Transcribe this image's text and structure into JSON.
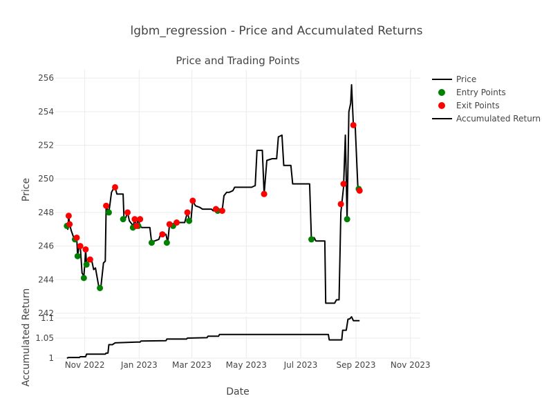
{
  "title": "lgbm_regression - Price and Accumulated Returns",
  "chart_data": {
    "type": "line",
    "xlabel": "Date",
    "x_range": [
      "2022-09-29",
      "2023-11-12"
    ],
    "x_ticks": [
      {
        "date": "2022-11-01",
        "label": "Nov 2022"
      },
      {
        "date": "2023-01-01",
        "label": "Jan 2023"
      },
      {
        "date": "2023-03-01",
        "label": "Mar 2023"
      },
      {
        "date": "2023-05-01",
        "label": "May 2023"
      },
      {
        "date": "2023-07-01",
        "label": "Jul 2023"
      },
      {
        "date": "2023-09-01",
        "label": "Sep 2023"
      },
      {
        "date": "2023-11-01",
        "label": "Nov 2023"
      }
    ],
    "legend": {
      "placement": "right",
      "items": [
        {
          "label": "Price",
          "kind": "line",
          "color": "#000000"
        },
        {
          "label": "Entry Points",
          "kind": "marker",
          "color": "#008000"
        },
        {
          "label": "Exit Points",
          "kind": "marker",
          "color": "#ff0000"
        },
        {
          "label": "Accumulated Return",
          "kind": "line",
          "color": "#000000"
        }
      ]
    },
    "price_panel": {
      "title": "Price and Trading Points",
      "ylabel": "Price",
      "ylim": [
        242,
        256.5
      ],
      "y_ticks": [
        242,
        244,
        246,
        248,
        250,
        252,
        254,
        256
      ],
      "price": {
        "name": "Price",
        "color": "#000000",
        "points": [
          [
            "2022-10-12",
            247.2
          ],
          [
            "2022-10-13",
            247.0
          ],
          [
            "2022-10-14",
            247.8
          ],
          [
            "2022-10-15",
            247.3
          ],
          [
            "2022-10-17",
            246.9
          ],
          [
            "2022-10-19",
            246.6
          ],
          [
            "2022-10-21",
            246.4
          ],
          [
            "2022-10-23",
            246.5
          ],
          [
            "2022-10-24",
            245.4
          ],
          [
            "2022-10-25",
            245.8
          ],
          [
            "2022-10-27",
            246.0
          ],
          [
            "2022-10-29",
            244.4
          ],
          [
            "2022-10-31",
            244.2
          ],
          [
            "2022-11-01",
            244.9
          ],
          [
            "2022-11-02",
            245.8
          ],
          [
            "2022-11-03",
            244.9
          ],
          [
            "2022-11-05",
            245.1
          ],
          [
            "2022-11-07",
            245.2
          ],
          [
            "2022-11-09",
            245.1
          ],
          [
            "2022-11-11",
            244.6
          ],
          [
            "2022-11-13",
            244.7
          ],
          [
            "2022-11-15",
            244.1
          ],
          [
            "2022-11-17",
            243.5
          ],
          [
            "2022-11-19",
            243.5
          ],
          [
            "2022-11-22",
            245.0
          ],
          [
            "2022-11-24",
            245.1
          ],
          [
            "2022-11-25",
            248.4
          ],
          [
            "2022-11-28",
            248.0
          ],
          [
            "2022-12-01",
            249.2
          ],
          [
            "2022-12-03",
            249.4
          ],
          [
            "2022-12-05",
            249.5
          ],
          [
            "2022-12-07",
            249.1
          ],
          [
            "2022-12-14",
            249.1
          ],
          [
            "2022-12-15",
            247.6
          ],
          [
            "2022-12-17",
            247.7
          ],
          [
            "2022-12-19",
            248.0
          ],
          [
            "2022-12-21",
            247.5
          ],
          [
            "2022-12-24",
            247.3
          ],
          [
            "2022-12-25",
            247.1
          ],
          [
            "2022-12-27",
            247.6
          ],
          [
            "2022-12-29",
            247.2
          ],
          [
            "2022-12-31",
            247.6
          ],
          [
            "2023-01-02",
            247.2
          ],
          [
            "2023-01-04",
            247.1
          ],
          [
            "2023-01-13",
            247.1
          ],
          [
            "2023-01-15",
            246.2
          ],
          [
            "2023-01-18",
            246.3
          ],
          [
            "2023-01-23",
            246.4
          ],
          [
            "2023-01-25",
            246.7
          ],
          [
            "2023-01-27",
            246.7
          ],
          [
            "2023-01-31",
            246.7
          ],
          [
            "2023-02-02",
            246.2
          ],
          [
            "2023-02-04",
            247.3
          ],
          [
            "2023-02-06",
            247.2
          ],
          [
            "2023-02-08",
            247.2
          ],
          [
            "2023-02-10",
            247.3
          ],
          [
            "2023-02-12",
            247.4
          ],
          [
            "2023-02-15",
            247.4
          ],
          [
            "2023-02-18",
            247.4
          ],
          [
            "2023-02-21",
            247.4
          ],
          [
            "2023-02-24",
            248.0
          ],
          [
            "2023-02-26",
            247.6
          ],
          [
            "2023-02-28",
            247.5
          ],
          [
            "2023-03-02",
            248.7
          ],
          [
            "2023-03-05",
            248.4
          ],
          [
            "2023-03-10",
            248.3
          ],
          [
            "2023-03-13",
            248.2
          ],
          [
            "2023-03-18",
            248.2
          ],
          [
            "2023-03-23",
            248.2
          ],
          [
            "2023-03-25",
            248.1
          ],
          [
            "2023-03-28",
            248.1
          ],
          [
            "2023-03-30",
            248.1
          ],
          [
            "2023-04-04",
            248.1
          ],
          [
            "2023-04-06",
            249.0
          ],
          [
            "2023-04-09",
            249.2
          ],
          [
            "2023-04-12",
            249.2
          ],
          [
            "2023-04-16",
            249.3
          ],
          [
            "2023-04-18",
            249.5
          ],
          [
            "2023-04-21",
            249.5
          ],
          [
            "2023-04-25",
            249.5
          ],
          [
            "2023-05-03",
            249.5
          ],
          [
            "2023-05-07",
            249.5
          ],
          [
            "2023-05-11",
            249.6
          ],
          [
            "2023-05-13",
            251.7
          ],
          [
            "2023-05-19",
            251.7
          ],
          [
            "2023-05-21",
            249.1
          ],
          [
            "2023-05-24",
            251.1
          ],
          [
            "2023-05-30",
            251.2
          ],
          [
            "2023-06-04",
            251.2
          ],
          [
            "2023-06-06",
            252.5
          ],
          [
            "2023-06-10",
            252.6
          ],
          [
            "2023-06-12",
            250.8
          ],
          [
            "2023-06-15",
            250.8
          ],
          [
            "2023-06-20",
            250.8
          ],
          [
            "2023-06-22",
            249.7
          ],
          [
            "2023-06-27",
            249.7
          ],
          [
            "2023-07-02",
            249.7
          ],
          [
            "2023-07-11",
            249.7
          ],
          [
            "2023-07-13",
            246.4
          ],
          [
            "2023-07-16",
            246.5
          ],
          [
            "2023-07-18",
            246.3
          ],
          [
            "2023-07-22",
            246.3
          ],
          [
            "2023-07-25",
            246.3
          ],
          [
            "2023-07-28",
            246.3
          ],
          [
            "2023-07-29",
            242.6
          ],
          [
            "2023-08-05",
            242.6
          ],
          [
            "2023-08-08",
            242.6
          ],
          [
            "2023-08-10",
            242.8
          ],
          [
            "2023-08-13",
            242.8
          ],
          [
            "2023-08-15",
            248.0
          ],
          [
            "2023-08-18",
            249.5
          ],
          [
            "2023-08-20",
            252.6
          ],
          [
            "2023-08-22",
            247.6
          ],
          [
            "2023-08-24",
            254.0
          ],
          [
            "2023-08-26",
            254.5
          ],
          [
            "2023-08-27",
            255.6
          ],
          [
            "2023-08-29",
            253.2
          ],
          [
            "2023-08-31",
            253.2
          ],
          [
            "2023-09-03",
            249.6
          ],
          [
            "2023-09-05",
            249.3
          ]
        ]
      },
      "entry_points": {
        "name": "Entry Points",
        "color": "#008000",
        "points": [
          [
            "2022-10-12",
            247.2
          ],
          [
            "2022-10-21",
            246.4
          ],
          [
            "2022-10-24",
            245.4
          ],
          [
            "2022-10-31",
            244.1
          ],
          [
            "2022-11-03",
            244.9
          ],
          [
            "2022-11-18",
            243.5
          ],
          [
            "2022-11-28",
            248.0
          ],
          [
            "2022-12-14",
            247.6
          ],
          [
            "2022-12-25",
            247.1
          ],
          [
            "2022-12-31",
            247.2
          ],
          [
            "2023-01-15",
            246.2
          ],
          [
            "2023-02-01",
            246.2
          ],
          [
            "2023-02-08",
            247.2
          ],
          [
            "2023-02-26",
            247.5
          ],
          [
            "2023-03-30",
            248.1
          ],
          [
            "2023-05-21",
            249.1
          ],
          [
            "2023-07-13",
            246.4
          ],
          [
            "2023-08-22",
            247.6
          ],
          [
            "2023-09-04",
            249.4
          ]
        ]
      },
      "exit_points": {
        "name": "Exit Points",
        "color": "#ff0000",
        "points": [
          [
            "2022-10-14",
            247.8
          ],
          [
            "2022-10-15",
            247.3
          ],
          [
            "2022-10-23",
            246.5
          ],
          [
            "2022-10-27",
            246.0
          ],
          [
            "2022-11-02",
            245.8
          ],
          [
            "2022-11-07",
            245.2
          ],
          [
            "2022-11-25",
            248.4
          ],
          [
            "2022-12-05",
            249.5
          ],
          [
            "2022-12-19",
            248.0
          ],
          [
            "2022-12-27",
            247.6
          ],
          [
            "2022-12-29",
            247.2
          ],
          [
            "2023-01-02",
            247.6
          ],
          [
            "2023-01-27",
            246.7
          ],
          [
            "2023-02-04",
            247.3
          ],
          [
            "2023-02-12",
            247.4
          ],
          [
            "2023-02-24",
            248.0
          ],
          [
            "2023-03-02",
            248.7
          ],
          [
            "2023-03-28",
            248.2
          ],
          [
            "2023-04-04",
            248.1
          ],
          [
            "2023-05-21",
            249.1
          ],
          [
            "2023-08-15",
            248.5
          ],
          [
            "2023-08-18",
            249.7
          ],
          [
            "2023-08-29",
            253.2
          ],
          [
            "2023-09-05",
            249.3
          ]
        ]
      }
    },
    "return_panel": {
      "ylabel": "Accumulated Return",
      "ylim": [
        1.0,
        1.105
      ],
      "y_ticks": [
        {
          "value": 1,
          "label": "1"
        },
        {
          "value": 1.05,
          "label": "1.05"
        },
        {
          "value": 1.1,
          "label": "1.1"
        }
      ],
      "series": {
        "name": "Accumulated Return",
        "color": "#000000",
        "points": [
          [
            "2022-10-12",
            1.0
          ],
          [
            "2022-10-14",
            1.0015
          ],
          [
            "2022-10-26",
            1.0015
          ],
          [
            "2022-10-27",
            1.0035
          ],
          [
            "2022-11-02",
            1.0035
          ],
          [
            "2022-11-03",
            1.01
          ],
          [
            "2022-11-24",
            1.01
          ],
          [
            "2022-11-25",
            1.0125
          ],
          [
            "2022-11-27",
            1.0125
          ],
          [
            "2022-11-28",
            1.0335
          ],
          [
            "2022-12-02",
            1.0335
          ],
          [
            "2022-12-05",
            1.038
          ],
          [
            "2022-12-29",
            1.04
          ],
          [
            "2023-01-02",
            1.04
          ],
          [
            "2023-01-03",
            1.0425
          ],
          [
            "2023-01-31",
            1.0435
          ],
          [
            "2023-02-01",
            1.0475
          ],
          [
            "2023-02-23",
            1.0475
          ],
          [
            "2023-02-24",
            1.05
          ],
          [
            "2023-03-18",
            1.051
          ],
          [
            "2023-03-19",
            1.0545
          ],
          [
            "2023-03-31",
            1.0545
          ],
          [
            "2023-04-01",
            1.059
          ],
          [
            "2023-08-01",
            1.059
          ],
          [
            "2023-08-02",
            1.0455
          ],
          [
            "2023-08-16",
            1.0455
          ],
          [
            "2023-08-17",
            1.0695
          ],
          [
            "2023-08-21",
            1.0695
          ],
          [
            "2023-08-23",
            1.097
          ],
          [
            "2023-08-25",
            1.098
          ],
          [
            "2023-08-27",
            1.103
          ],
          [
            "2023-08-29",
            1.0935
          ],
          [
            "2023-09-05",
            1.0935
          ]
        ]
      }
    }
  }
}
